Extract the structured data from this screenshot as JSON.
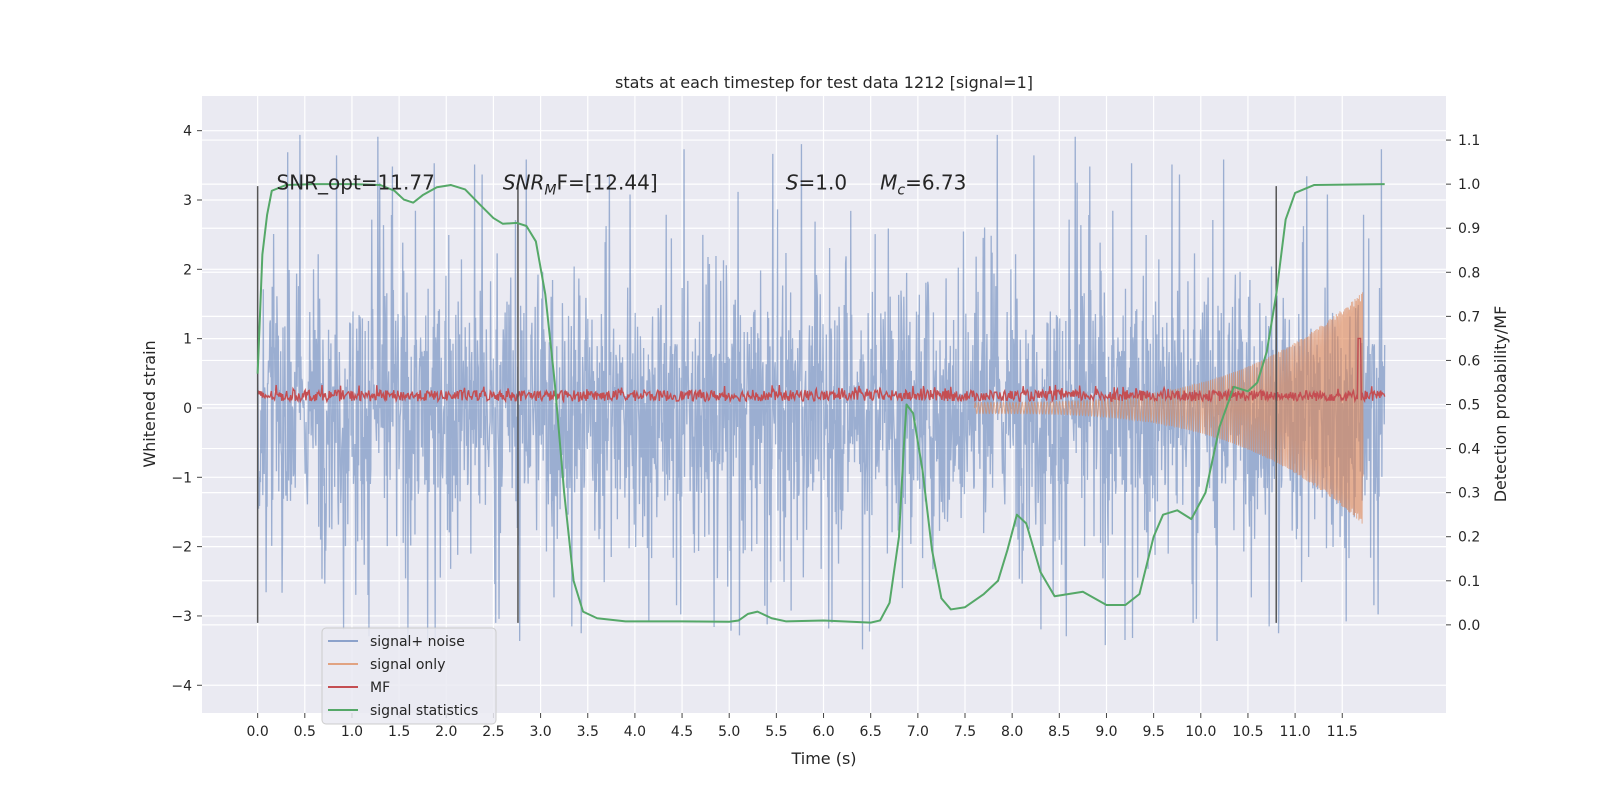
{
  "chart_data": {
    "type": "line",
    "title": "stats at each timestep for test data 1212 [signal=1]",
    "xlabel": "Time (s)",
    "ylabel": "Whitened strain",
    "ylabel_right": "Detection probability/MF",
    "xlim": [
      -0.59,
      12.6
    ],
    "ylim": [
      -4.4,
      4.5
    ],
    "ylim_right": [
      -0.2,
      1.2
    ],
    "x_ticks": [
      "0.0",
      "0.5",
      "1.0",
      "1.5",
      "2.0",
      "2.5",
      "3.0",
      "3.5",
      "4.0",
      "4.5",
      "5.0",
      "5.5",
      "6.0",
      "6.5",
      "7.0",
      "7.5",
      "8.0",
      "8.5",
      "9.0",
      "9.5",
      "10.0",
      "10.5",
      "11.0",
      "11.5"
    ],
    "y_ticks": [
      "4",
      "3",
      "2",
      "1",
      "0",
      "−1",
      "−2",
      "−3",
      "−4"
    ],
    "y_ticks_right": [
      "1.1",
      "1.0",
      "0.9",
      "0.8",
      "0.7",
      "0.6",
      "0.5",
      "0.4",
      "0.3",
      "0.2",
      "0.1",
      "0.0"
    ],
    "grid": true,
    "legend_position": "lower-left",
    "colors": {
      "plot_background": "#eaeaf2",
      "noise": "#4c72b0",
      "signal": "#dd8452",
      "mf": "#c44e52",
      "stat": "#55a868",
      "markers": "#555555"
    },
    "annotations": [
      {
        "id": "snr-opt",
        "text": "SNR_opt=11.77",
        "x": 0.2,
        "y": 3.15
      },
      {
        "id": "snr-mf",
        "prefix": "SNR",
        "sub": "M",
        "suffix": "F=[12.44]",
        "x": 2.6,
        "y": 3.15
      },
      {
        "id": "s-value",
        "prefix": "S",
        "suffix": "=1.0",
        "italic_prefix": true,
        "x": 5.6,
        "y": 3.15
      },
      {
        "id": "mc-value",
        "prefix": "M",
        "sub": "c",
        "suffix": "=6.73",
        "x": 6.6,
        "y": 3.15
      }
    ],
    "vertical_markers": [
      {
        "x": 0.0,
        "y_range": [
          -3.1,
          3.2
        ]
      },
      {
        "x": 2.76,
        "y_range": [
          -3.1,
          3.2
        ]
      },
      {
        "x": 10.8,
        "y_range": [
          -3.1,
          3.2
        ]
      }
    ],
    "series": [
      {
        "name": "signal+ noise",
        "kind": "noise",
        "x_range": [
          0.0,
          11.95
        ],
        "base_range": [
          -2.0,
          2.0
        ],
        "peak_range": [
          -3.5,
          4.0
        ]
      },
      {
        "name": "signal only",
        "kind": "chirp",
        "x_range": [
          7.6,
          11.72
        ],
        "peak_amplitude": 1.6
      },
      {
        "name": "MF",
        "kind": "mf",
        "axis": "right",
        "x_range": [
          0.0,
          11.95
        ],
        "level": 0.52,
        "peak": {
          "x": 11.68,
          "value": 0.65
        }
      },
      {
        "name": "signal statistics",
        "kind": "line",
        "axis": "right",
        "points": [
          [
            0.0,
            0.57
          ],
          [
            0.05,
            0.84
          ],
          [
            0.1,
            0.93
          ],
          [
            0.15,
            0.985
          ],
          [
            0.3,
            0.998
          ],
          [
            0.6,
            1.0
          ],
          [
            1.0,
            1.0
          ],
          [
            1.3,
            0.998
          ],
          [
            1.45,
            0.985
          ],
          [
            1.55,
            0.965
          ],
          [
            1.65,
            0.958
          ],
          [
            1.75,
            0.975
          ],
          [
            1.9,
            0.993
          ],
          [
            2.05,
            0.998
          ],
          [
            2.2,
            0.988
          ],
          [
            2.35,
            0.955
          ],
          [
            2.5,
            0.923
          ],
          [
            2.6,
            0.91
          ],
          [
            2.75,
            0.912
          ],
          [
            2.85,
            0.905
          ],
          [
            2.95,
            0.87
          ],
          [
            3.05,
            0.75
          ],
          [
            3.15,
            0.55
          ],
          [
            3.25,
            0.3
          ],
          [
            3.35,
            0.1
          ],
          [
            3.45,
            0.03
          ],
          [
            3.6,
            0.015
          ],
          [
            3.9,
            0.008
          ],
          [
            4.5,
            0.008
          ],
          [
            5.0,
            0.007
          ],
          [
            5.1,
            0.01
          ],
          [
            5.2,
            0.025
          ],
          [
            5.3,
            0.03
          ],
          [
            5.45,
            0.015
          ],
          [
            5.6,
            0.008
          ],
          [
            6.0,
            0.01
          ],
          [
            6.5,
            0.005
          ],
          [
            6.6,
            0.01
          ],
          [
            6.7,
            0.05
          ],
          [
            6.8,
            0.2
          ],
          [
            6.85,
            0.4
          ],
          [
            6.88,
            0.5
          ],
          [
            6.95,
            0.48
          ],
          [
            7.05,
            0.35
          ],
          [
            7.15,
            0.17
          ],
          [
            7.25,
            0.06
          ],
          [
            7.35,
            0.035
          ],
          [
            7.5,
            0.04
          ],
          [
            7.7,
            0.07
          ],
          [
            7.85,
            0.1
          ],
          [
            7.95,
            0.17
          ],
          [
            8.05,
            0.25
          ],
          [
            8.15,
            0.23
          ],
          [
            8.3,
            0.12
          ],
          [
            8.45,
            0.065
          ],
          [
            8.6,
            0.07
          ],
          [
            8.75,
            0.075
          ],
          [
            9.0,
            0.045
          ],
          [
            9.2,
            0.045
          ],
          [
            9.35,
            0.07
          ],
          [
            9.5,
            0.2
          ],
          [
            9.6,
            0.25
          ],
          [
            9.75,
            0.26
          ],
          [
            9.9,
            0.24
          ],
          [
            10.05,
            0.3
          ],
          [
            10.2,
            0.45
          ],
          [
            10.35,
            0.54
          ],
          [
            10.5,
            0.53
          ],
          [
            10.6,
            0.55
          ],
          [
            10.7,
            0.62
          ],
          [
            10.8,
            0.75
          ],
          [
            10.9,
            0.92
          ],
          [
            11.0,
            0.98
          ],
          [
            11.2,
            0.998
          ],
          [
            11.95,
            1.0
          ]
        ]
      }
    ]
  }
}
